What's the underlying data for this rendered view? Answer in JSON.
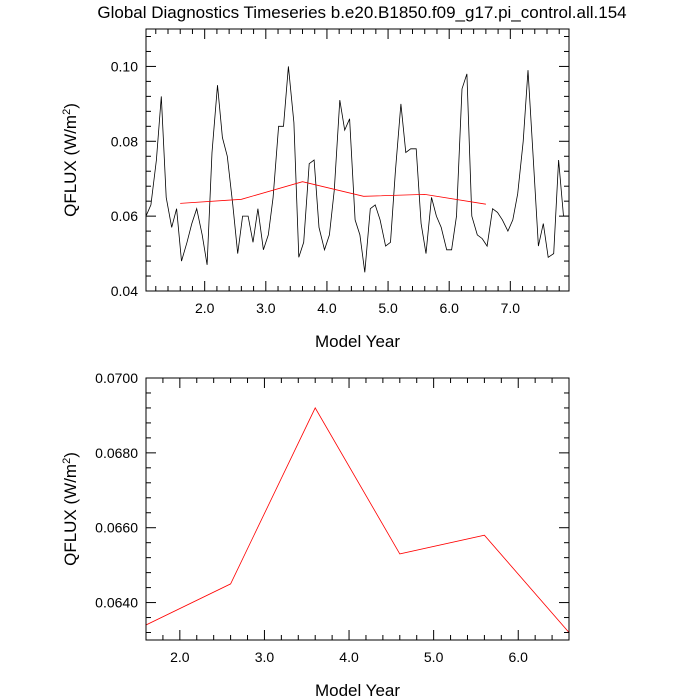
{
  "figure_title": "Global Diagnostics Timeseries b.e20.B1850.f09_g17.pi_control.all.154",
  "colors": {
    "axis": "#000000",
    "monthly_line": "#000000",
    "annual_line": "#ff0000"
  },
  "chart_data": [
    {
      "type": "line",
      "title": "",
      "xlabel": "Model Year",
      "ylabel_main": "QFLUX (W/m",
      "ylabel_sup": "2",
      "ylabel_tail": ")",
      "xlim": [
        1.04,
        7.96
      ],
      "ylim": [
        0.04,
        0.11
      ],
      "xticks": [
        2.0,
        3.0,
        4.0,
        5.0,
        6.0,
        7.0
      ],
      "xticklabels": [
        "2.0",
        "3.0",
        "4.0",
        "5.0",
        "6.0",
        "7.0"
      ],
      "yticks": [
        0.04,
        0.06,
        0.08,
        0.1
      ],
      "yticklabels": [
        "0.04",
        "0.06",
        "0.08",
        "0.10"
      ],
      "series": [
        {
          "style": "monthly",
          "x": [
            1.04,
            1.12,
            1.21,
            1.29,
            1.37,
            1.46,
            1.54,
            1.62,
            1.71,
            1.79,
            1.87,
            1.96,
            2.04,
            2.12,
            2.21,
            2.29,
            2.37,
            2.46,
            2.54,
            2.62,
            2.71,
            2.79,
            2.87,
            2.96,
            3.04,
            3.12,
            3.21,
            3.29,
            3.37,
            3.46,
            3.54,
            3.62,
            3.71,
            3.79,
            3.87,
            3.96,
            4.04,
            4.12,
            4.21,
            4.29,
            4.37,
            4.46,
            4.54,
            4.62,
            4.71,
            4.79,
            4.87,
            4.96,
            5.04,
            5.12,
            5.21,
            5.29,
            5.37,
            5.46,
            5.54,
            5.62,
            5.71,
            5.79,
            5.87,
            5.96,
            6.04,
            6.12,
            6.21,
            6.29,
            6.37,
            6.46,
            6.54,
            6.62,
            6.71,
            6.79,
            6.87,
            6.96,
            7.04,
            7.12,
            7.21,
            7.29,
            7.37,
            7.46,
            7.54,
            7.62,
            7.71,
            7.79,
            7.87,
            7.96
          ],
          "y": [
            0.06,
            0.063,
            0.075,
            0.092,
            0.065,
            0.057,
            0.062,
            0.048,
            0.053,
            0.058,
            0.062,
            0.055,
            0.047,
            0.077,
            0.095,
            0.081,
            0.076,
            0.063,
            0.05,
            0.06,
            0.06,
            0.053,
            0.062,
            0.051,
            0.055,
            0.065,
            0.084,
            0.084,
            0.1,
            0.085,
            0.049,
            0.053,
            0.074,
            0.075,
            0.057,
            0.051,
            0.055,
            0.067,
            0.091,
            0.083,
            0.086,
            0.059,
            0.055,
            0.045,
            0.062,
            0.063,
            0.059,
            0.052,
            0.053,
            0.072,
            0.09,
            0.077,
            0.078,
            0.078,
            0.058,
            0.05,
            0.065,
            0.06,
            0.057,
            0.051,
            0.051,
            0.06,
            0.094,
            0.098,
            0.06,
            0.055,
            0.054,
            0.052,
            0.062,
            0.061,
            0.059,
            0.056,
            0.059,
            0.066,
            0.08,
            0.099,
            0.077,
            0.052,
            0.058,
            0.049,
            0.05,
            0.075,
            0.06,
            0.06
          ]
        },
        {
          "style": "annual",
          "x": [
            1.6,
            2.6,
            3.6,
            4.6,
            5.6,
            6.6
          ],
          "y": [
            0.0634,
            0.0645,
            0.0692,
            0.0653,
            0.0658,
            0.0632
          ]
        }
      ]
    },
    {
      "type": "line",
      "title": "",
      "xlabel": "Model Year",
      "ylabel_main": "QFLUX (W/m",
      "ylabel_sup": "2",
      "ylabel_tail": ")",
      "xlim": [
        1.6,
        6.6
      ],
      "ylim": [
        0.063,
        0.07
      ],
      "xticks": [
        2.0,
        3.0,
        4.0,
        5.0,
        6.0
      ],
      "xticklabels": [
        "2.0",
        "3.0",
        "4.0",
        "5.0",
        "6.0"
      ],
      "yticks": [
        0.064,
        0.066,
        0.068,
        0.07
      ],
      "yticklabels": [
        "0.0640",
        "0.0660",
        "0.0680",
        "0.0700"
      ],
      "series": [
        {
          "style": "annual",
          "x": [
            1.6,
            2.6,
            3.6,
            4.6,
            5.6,
            6.6
          ],
          "y": [
            0.0634,
            0.0645,
            0.0692,
            0.0653,
            0.0658,
            0.0632
          ]
        }
      ]
    }
  ]
}
